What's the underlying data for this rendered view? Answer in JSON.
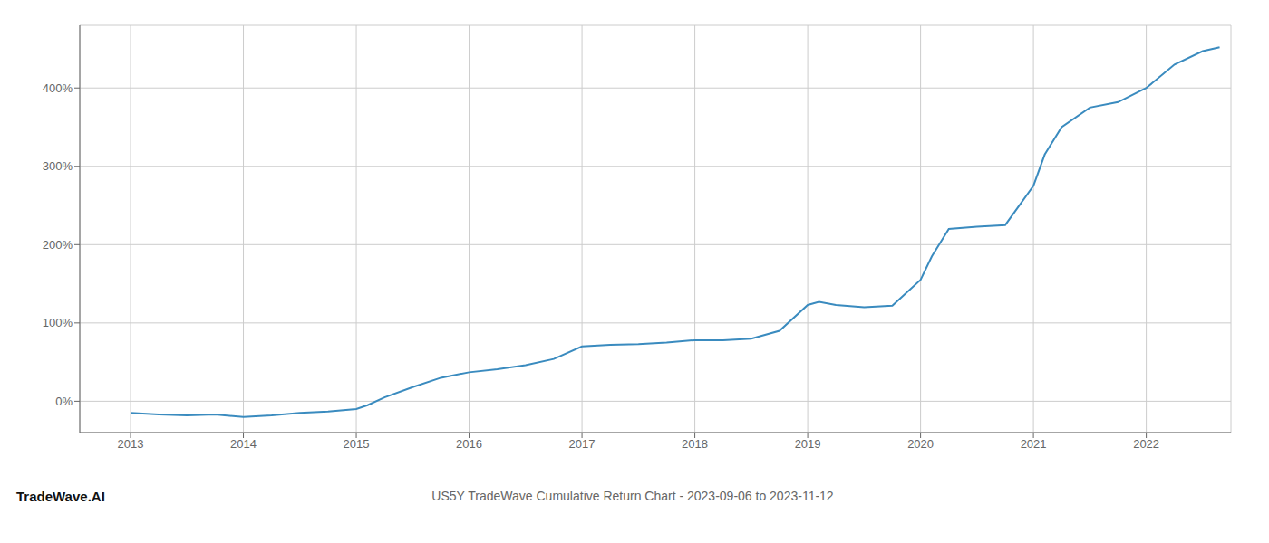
{
  "chart_data": {
    "type": "line",
    "title": "US5Y TradeWave Cumulative Return Chart - 2023-09-06 to 2023-11-12",
    "annotations": [
      "TradeWave.AI"
    ],
    "color": "#3a8bbf",
    "x": [
      2013.0,
      2013.25,
      2013.5,
      2013.75,
      2014.0,
      2014.25,
      2014.5,
      2014.75,
      2015.0,
      2015.1,
      2015.25,
      2015.5,
      2015.75,
      2016.0,
      2016.25,
      2016.5,
      2016.75,
      2017.0,
      2017.25,
      2017.5,
      2017.75,
      2018.0,
      2018.25,
      2018.5,
      2018.75,
      2019.0,
      2019.1,
      2019.25,
      2019.5,
      2019.75,
      2020.0,
      2020.1,
      2020.25,
      2020.5,
      2020.75,
      2021.0,
      2021.1,
      2021.25,
      2021.5,
      2021.75,
      2022.0,
      2022.25,
      2022.5,
      2022.65
    ],
    "values": [
      -15,
      -17,
      -18,
      -17,
      -20,
      -18,
      -15,
      -13,
      -10,
      -5,
      5,
      18,
      30,
      37,
      41,
      46,
      54,
      70,
      72,
      73,
      75,
      78,
      78,
      80,
      90,
      123,
      127,
      123,
      120,
      122,
      155,
      185,
      220,
      223,
      225,
      275,
      315,
      350,
      375,
      382,
      400,
      430,
      447,
      452
    ],
    "xlim": [
      2012.55,
      2022.75
    ],
    "ylim": [
      -40,
      480
    ],
    "xticks": [
      2013,
      2014,
      2015,
      2016,
      2017,
      2018,
      2019,
      2020,
      2021,
      2022
    ],
    "yticks": [
      {
        "value": 0,
        "label": "0%"
      },
      {
        "value": 100,
        "label": "100%"
      },
      {
        "value": 200,
        "label": "200%"
      },
      {
        "value": 300,
        "label": "300%"
      },
      {
        "value": 400,
        "label": "400%"
      }
    ],
    "grid": true
  }
}
